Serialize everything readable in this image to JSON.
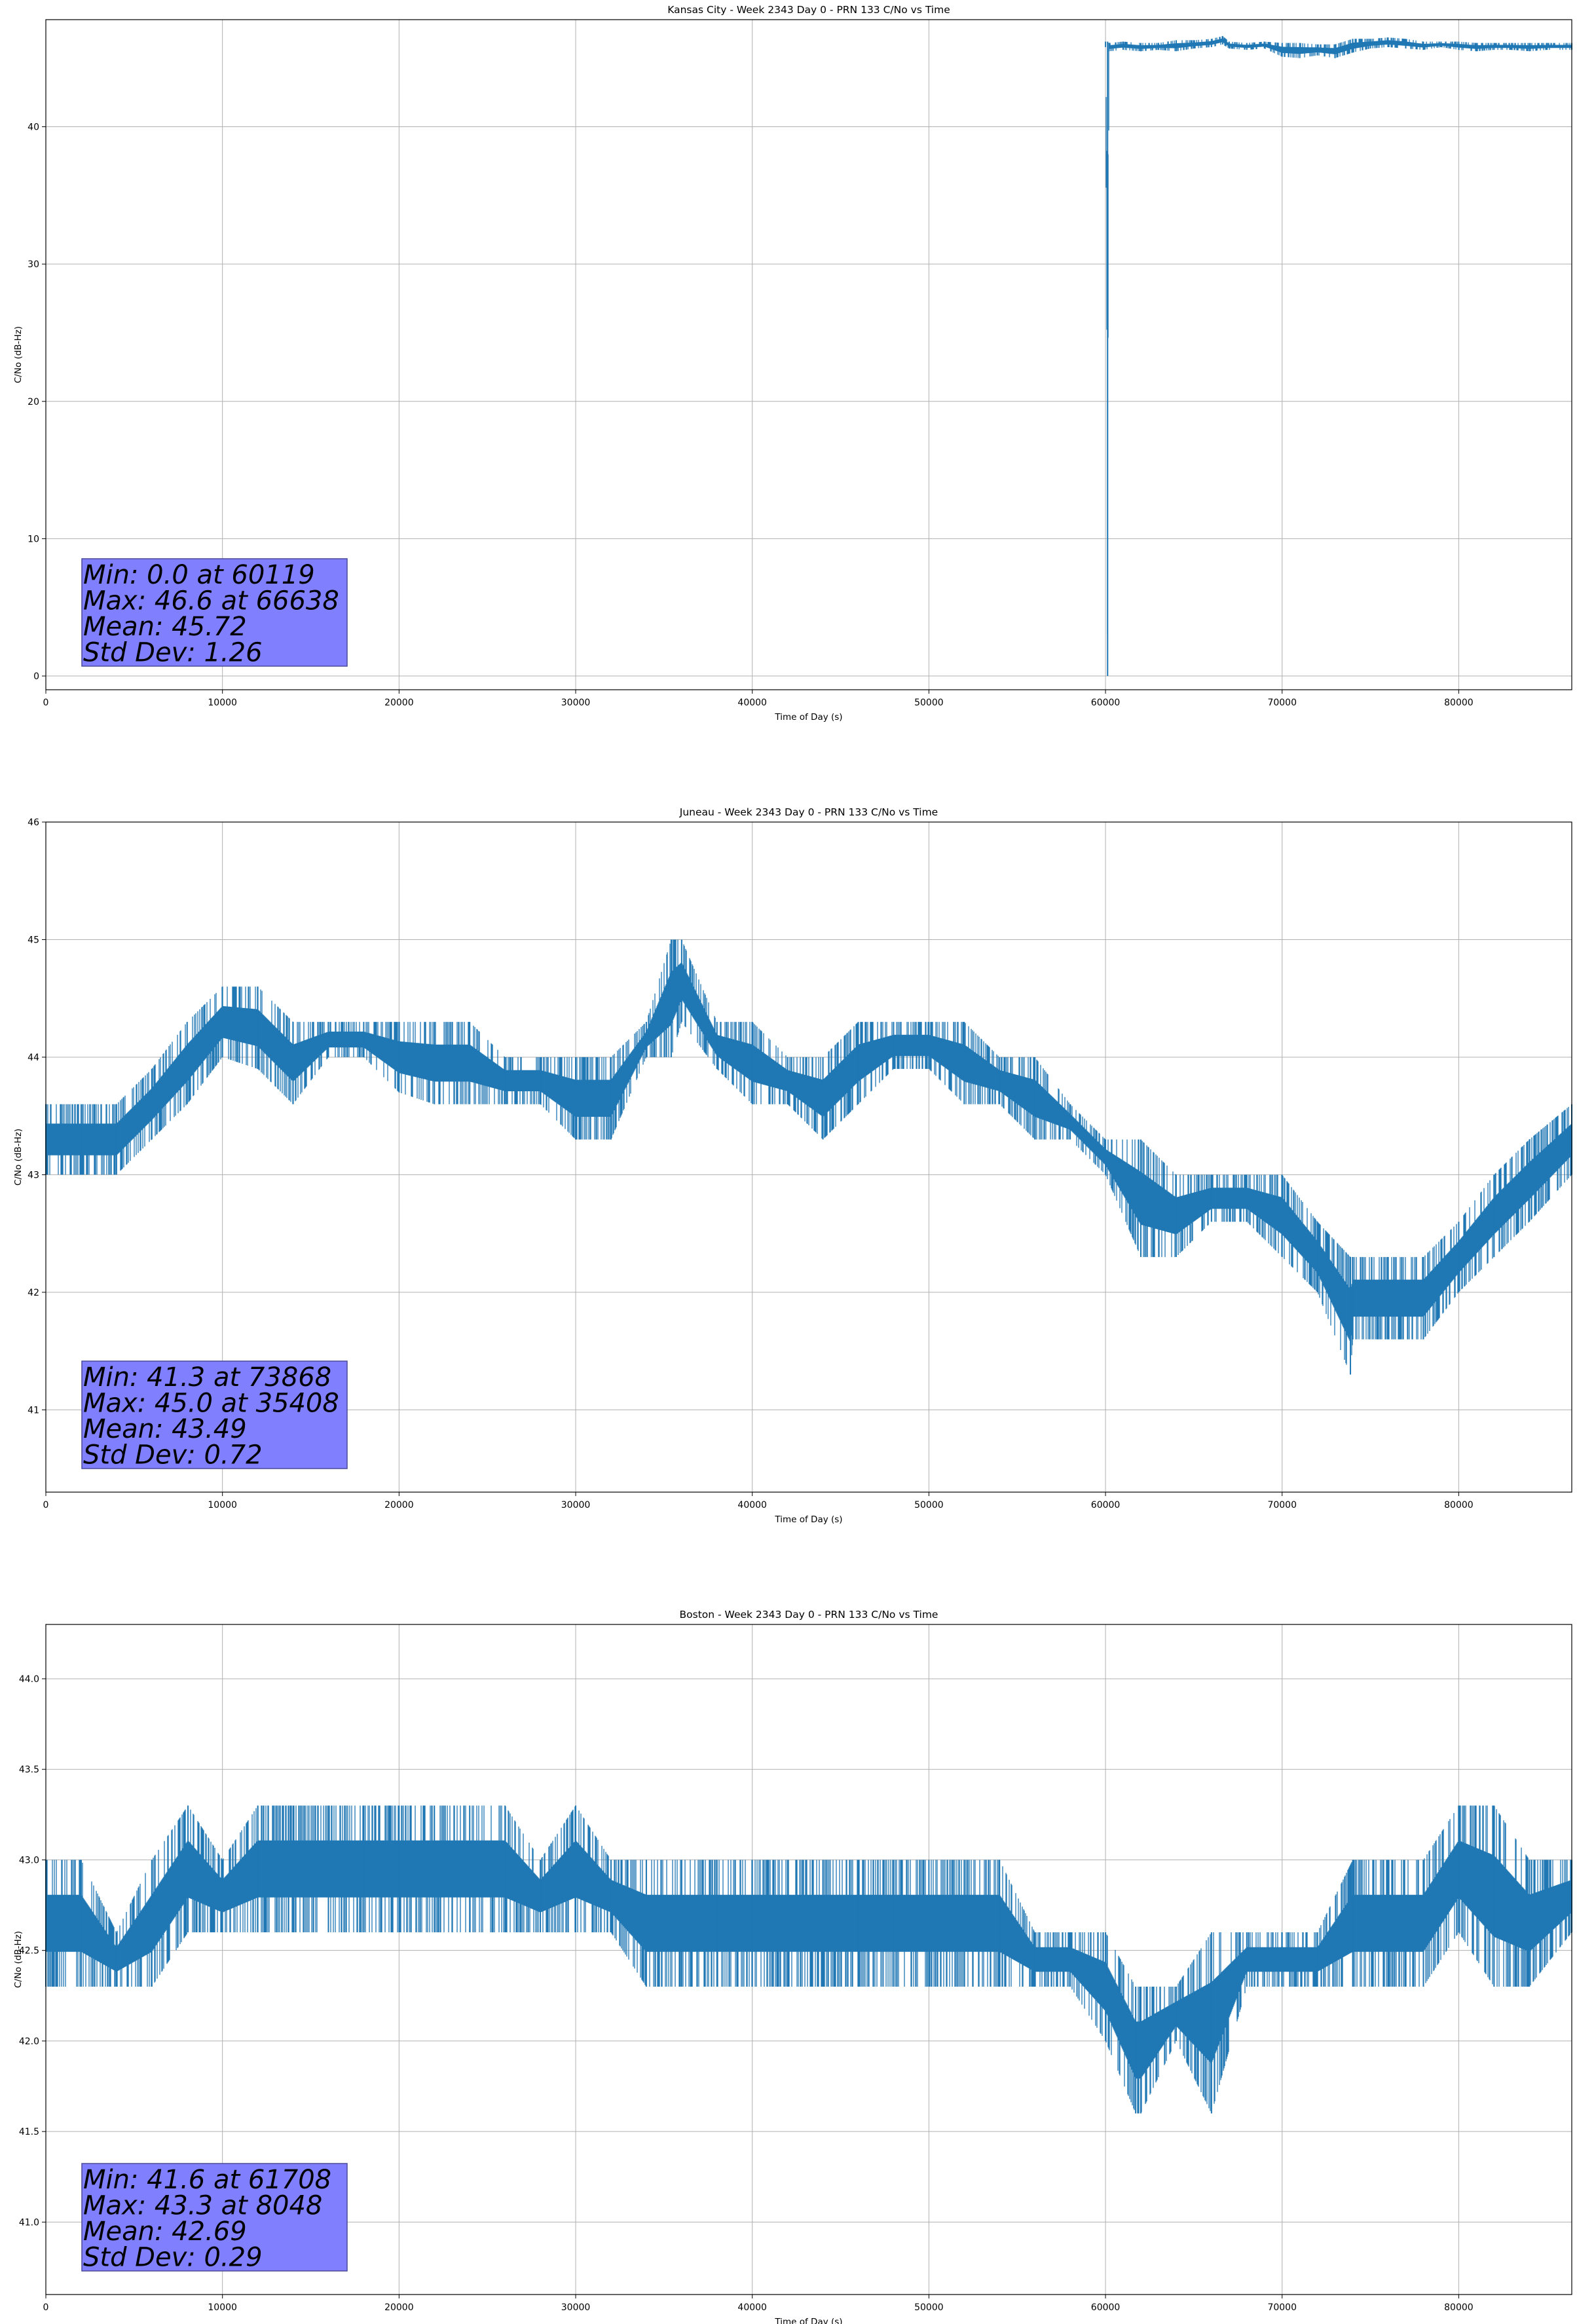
{
  "chart_data": [
    {
      "type": "line",
      "title": "Kansas City - Week 2343 Day 0 - PRN 133 C/No vs Time",
      "xlabel": "Time of Day (s)",
      "ylabel": "C/No (dB-Hz)",
      "xlim": [
        0,
        86400
      ],
      "ylim": [
        -1.0,
        47.8
      ],
      "xticks": [
        0,
        10000,
        20000,
        30000,
        40000,
        50000,
        60000,
        70000,
        80000
      ],
      "yticks": [
        0,
        10,
        20,
        30,
        40
      ],
      "ytick_labels": [
        "0",
        "10",
        "20",
        "30",
        "40"
      ],
      "grid": true,
      "series_color": "#1f77b4",
      "data_start": 60000,
      "series": [
        {
          "x": [
            60000,
            60119,
            60200,
            61000,
            62000,
            63000,
            64000,
            65000,
            66000,
            66638,
            67000,
            68000,
            69000,
            70000,
            71000,
            72000,
            73000,
            74000,
            75000,
            76000,
            77000,
            78000,
            79000,
            80000,
            81000,
            82000,
            83000,
            84000,
            85000,
            86400
          ],
          "lo": [
            45.8,
            0.0,
            45.5,
            45.6,
            45.5,
            45.6,
            45.5,
            45.7,
            45.8,
            46.0,
            45.7,
            45.6,
            45.7,
            45.1,
            45.0,
            45.2,
            45.0,
            45.4,
            45.7,
            45.8,
            45.7,
            45.6,
            45.8,
            45.6,
            45.5,
            45.6,
            45.6,
            45.5,
            45.6,
            45.6
          ],
          "hi": [
            46.2,
            46.2,
            46.1,
            46.2,
            46.1,
            46.1,
            46.3,
            46.3,
            46.4,
            46.6,
            46.2,
            46.1,
            46.2,
            46.1,
            46.1,
            46.0,
            46.0,
            46.4,
            46.4,
            46.5,
            46.4,
            46.2,
            46.2,
            46.2,
            46.1,
            46.1,
            46.1,
            46.1,
            46.1,
            46.1
          ]
        }
      ],
      "stats": [
        "Min: 0.0 at 60119",
        "Max: 46.6 at 66638",
        "Mean: 45.72",
        "Std Dev: 1.26"
      ]
    },
    {
      "type": "line",
      "title": "Juneau - Week 2343 Day 0 - PRN 133 C/No vs Time",
      "xlabel": "Time of Day (s)",
      "ylabel": "C/No (dB-Hz)",
      "xlim": [
        0,
        86400
      ],
      "ylim": [
        40.3,
        46.0
      ],
      "xticks": [
        0,
        10000,
        20000,
        30000,
        40000,
        50000,
        60000,
        70000,
        80000
      ],
      "yticks": [
        41,
        42,
        43,
        44,
        45,
        46
      ],
      "ytick_labels": [
        "41",
        "42",
        "43",
        "44",
        "45",
        "46"
      ],
      "grid": true,
      "series_color": "#1f77b4",
      "data_start": 0,
      "series": [
        {
          "x": [
            0,
            2000,
            4000,
            6000,
            8000,
            10000,
            12000,
            14000,
            16000,
            18000,
            20000,
            22000,
            24000,
            26000,
            28000,
            30000,
            32000,
            34000,
            35408,
            36000,
            38000,
            40000,
            42000,
            44000,
            46000,
            48000,
            50000,
            52000,
            54000,
            56000,
            58000,
            60000,
            62000,
            64000,
            66000,
            68000,
            70000,
            72000,
            73868,
            74000,
            76000,
            78000,
            80000,
            82000,
            84000,
            86400
          ],
          "lo": [
            43.0,
            43.0,
            43.0,
            43.3,
            43.6,
            44.0,
            43.9,
            43.6,
            44.0,
            44.0,
            43.7,
            43.6,
            43.6,
            43.6,
            43.6,
            43.3,
            43.3,
            44.0,
            44.0,
            44.3,
            43.9,
            43.6,
            43.6,
            43.3,
            43.6,
            43.9,
            43.9,
            43.6,
            43.6,
            43.3,
            43.3,
            43.0,
            42.3,
            42.3,
            42.6,
            42.6,
            42.3,
            42.0,
            41.3,
            41.6,
            41.6,
            41.6,
            42.0,
            42.3,
            42.6,
            43.0
          ],
          "hi": [
            43.6,
            43.6,
            43.6,
            43.9,
            44.3,
            44.6,
            44.6,
            44.3,
            44.3,
            44.3,
            44.3,
            44.3,
            44.3,
            44.0,
            44.0,
            44.0,
            44.0,
            44.3,
            45.0,
            45.0,
            44.3,
            44.3,
            44.0,
            44.0,
            44.3,
            44.3,
            44.3,
            44.3,
            44.0,
            44.0,
            43.6,
            43.3,
            43.3,
            43.0,
            43.0,
            43.0,
            43.0,
            42.6,
            42.3,
            42.3,
            42.3,
            42.3,
            42.6,
            43.0,
            43.3,
            43.6
          ]
        }
      ],
      "stats": [
        "Min: 41.3 at 73868",
        "Max: 45.0 at 35408",
        "Mean: 43.49",
        "Std Dev: 0.72"
      ]
    },
    {
      "type": "line",
      "title": "Boston - Week 2343 Day 0 - PRN 133 C/No vs Time",
      "xlabel": "Time of Day (s)",
      "ylabel": "C/No (dB-Hz)",
      "xlim": [
        0,
        86400
      ],
      "ylim": [
        40.6,
        44.3
      ],
      "xticks": [
        0,
        10000,
        20000,
        30000,
        40000,
        50000,
        60000,
        70000,
        80000
      ],
      "yticks": [
        41.0,
        41.5,
        42.0,
        42.5,
        43.0,
        43.5,
        44.0
      ],
      "ytick_labels": [
        "41.0",
        "41.5",
        "42.0",
        "42.5",
        "43.0",
        "43.5",
        "44.0"
      ],
      "grid": true,
      "series_color": "#1f77b4",
      "data_start": 0,
      "series": [
        {
          "x": [
            0,
            2000,
            4000,
            6000,
            8048,
            10000,
            12000,
            14000,
            16000,
            18000,
            20000,
            22000,
            24000,
            26000,
            28000,
            30000,
            32000,
            34000,
            36000,
            38000,
            40000,
            42000,
            44000,
            46000,
            48000,
            50000,
            52000,
            54000,
            56000,
            58000,
            60000,
            61708,
            62000,
            64000,
            66000,
            68000,
            70000,
            72000,
            74000,
            76000,
            78000,
            80000,
            82000,
            84000,
            86400
          ],
          "lo": [
            42.3,
            42.3,
            42.3,
            42.3,
            42.6,
            42.6,
            42.6,
            42.6,
            42.6,
            42.6,
            42.6,
            42.6,
            42.6,
            42.6,
            42.6,
            42.6,
            42.6,
            42.3,
            42.3,
            42.3,
            42.3,
            42.3,
            42.3,
            42.3,
            42.3,
            42.3,
            42.3,
            42.3,
            42.3,
            42.3,
            42.0,
            41.6,
            41.6,
            42.0,
            41.6,
            42.3,
            42.3,
            42.3,
            42.3,
            42.3,
            42.3,
            42.6,
            42.3,
            42.3,
            42.6
          ],
          "hi": [
            43.0,
            43.0,
            42.6,
            43.0,
            43.3,
            43.0,
            43.3,
            43.3,
            43.3,
            43.3,
            43.3,
            43.3,
            43.3,
            43.3,
            43.0,
            43.3,
            43.0,
            43.0,
            43.0,
            43.0,
            43.0,
            43.0,
            43.0,
            43.0,
            43.0,
            43.0,
            43.0,
            43.0,
            42.6,
            42.6,
            42.6,
            42.3,
            42.3,
            42.3,
            42.6,
            42.6,
            42.6,
            42.6,
            43.0,
            43.0,
            43.0,
            43.3,
            43.3,
            43.0,
            43.0
          ]
        }
      ],
      "stats": [
        "Min: 41.6 at 61708",
        "Max: 43.3 at 8048",
        "Mean: 42.69",
        "Std Dev: 0.29"
      ]
    }
  ]
}
